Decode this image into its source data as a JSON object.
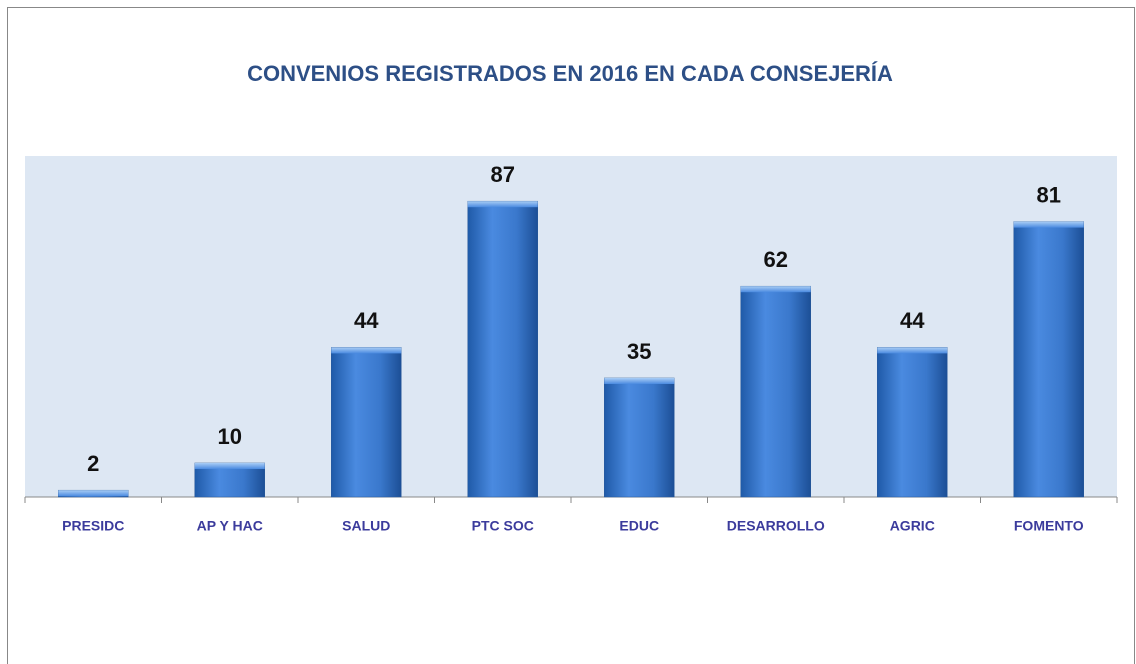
{
  "chart_data": {
    "type": "bar",
    "title": "CONVENIOS REGISTRADOS EN 2016 EN CADA CONSEJERÍA",
    "categories": [
      "PRESIDC",
      "AP Y HAC",
      "SALUD",
      "PTC SOC",
      "EDUC",
      "DESARROLLO",
      "AGRIC",
      "FOMENTO"
    ],
    "values": [
      2,
      10,
      44,
      87,
      35,
      62,
      44,
      81
    ],
    "color": "#3f7fd0"
  }
}
